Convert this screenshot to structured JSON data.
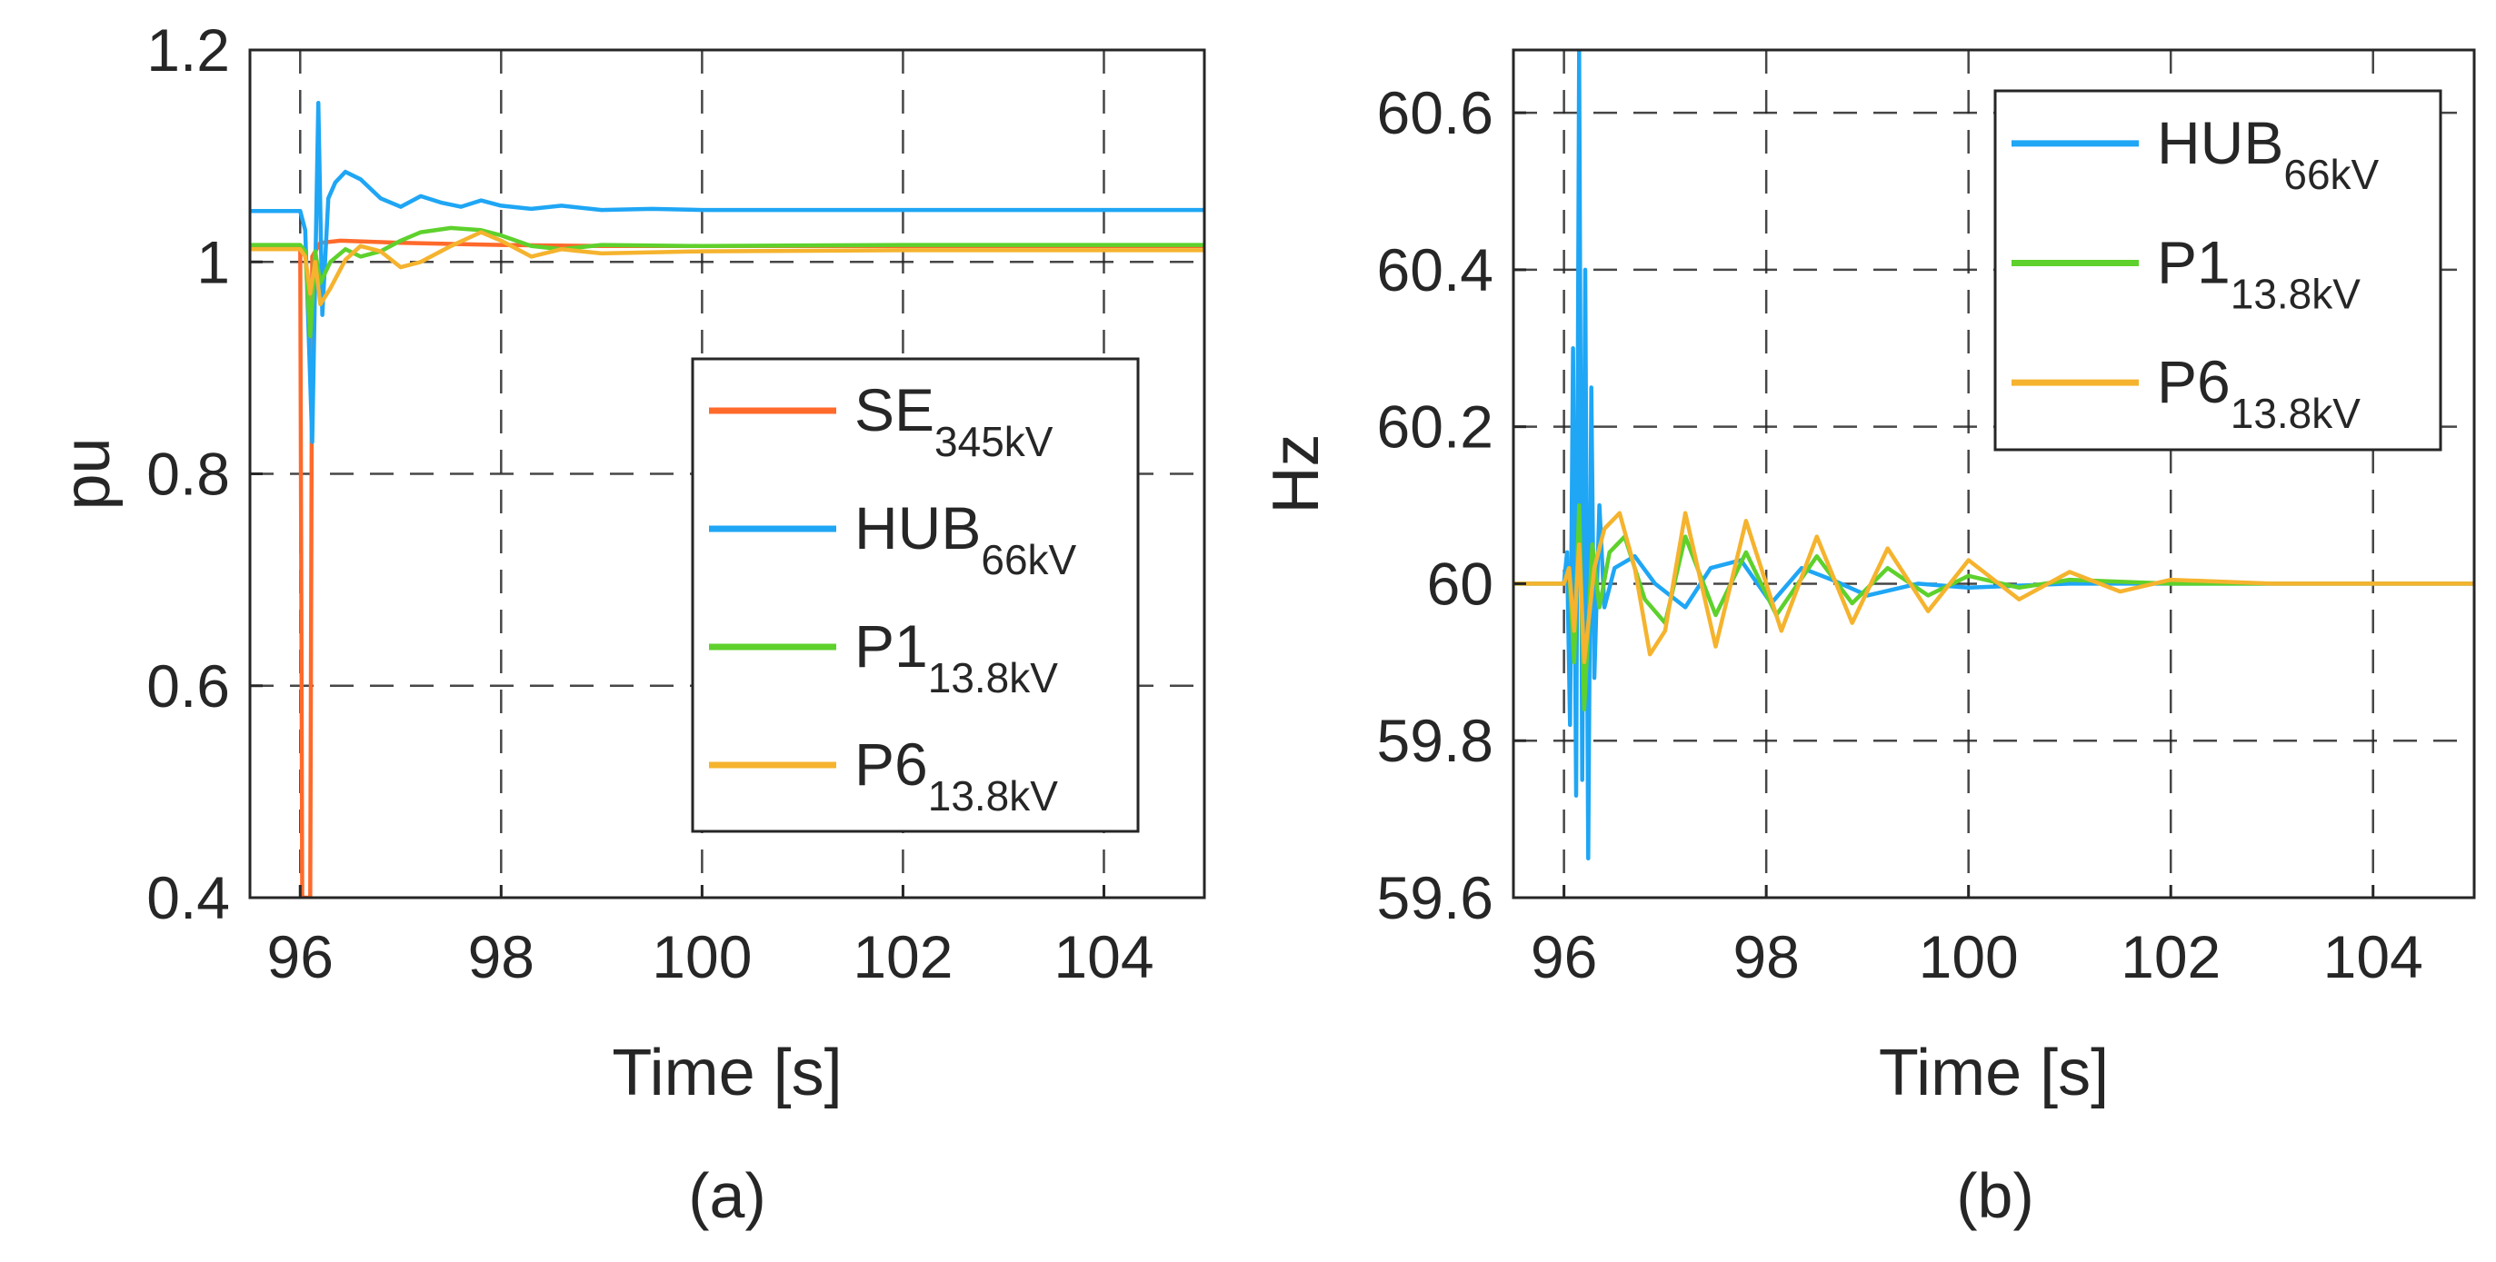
{
  "figure": {
    "panels": [
      "(a)",
      "(b)"
    ]
  },
  "chart_data": [
    {
      "type": "line",
      "caption": "(a)",
      "title": "",
      "xlabel": "Time [s]",
      "ylabel": "pu",
      "xlim": [
        95.5,
        105
      ],
      "ylim": [
        0.4,
        1.2
      ],
      "xticks": [
        96,
        98,
        100,
        102,
        104
      ],
      "yticks": [
        0.4,
        0.6,
        0.8,
        1,
        1.2
      ],
      "ytick_labels": [
        "0.4",
        "0.6",
        "0.8",
        "1",
        "1.2"
      ],
      "grid": true,
      "legend_position": "center-right",
      "series": [
        {
          "name": "SE",
          "subscript": "345kV",
          "color": "#ff6a2b",
          "points": [
            [
              95.5,
              1.015
            ],
            [
              96.0,
              1.015
            ],
            [
              96.02,
              0.4
            ],
            [
              96.1,
              0.4
            ],
            [
              96.12,
              1.005
            ],
            [
              96.2,
              1.018
            ],
            [
              96.4,
              1.02
            ],
            [
              97.0,
              1.018
            ],
            [
              98.0,
              1.016
            ],
            [
              99.0,
              1.015
            ],
            [
              105,
              1.015
            ]
          ]
        },
        {
          "name": "HUB",
          "subscript": "66kV",
          "color": "#1fa6f5",
          "points": [
            [
              95.5,
              1.048
            ],
            [
              96.0,
              1.048
            ],
            [
              96.05,
              1.03
            ],
            [
              96.12,
              0.83
            ],
            [
              96.18,
              1.15
            ],
            [
              96.22,
              0.95
            ],
            [
              96.28,
              1.06
            ],
            [
              96.35,
              1.075
            ],
            [
              96.45,
              1.085
            ],
            [
              96.6,
              1.078
            ],
            [
              96.8,
              1.06
            ],
            [
              97.0,
              1.052
            ],
            [
              97.2,
              1.062
            ],
            [
              97.4,
              1.056
            ],
            [
              97.6,
              1.052
            ],
            [
              97.8,
              1.058
            ],
            [
              98.0,
              1.053
            ],
            [
              98.3,
              1.05
            ],
            [
              98.6,
              1.053
            ],
            [
              99.0,
              1.049
            ],
            [
              99.5,
              1.05
            ],
            [
              100,
              1.049
            ],
            [
              102,
              1.049
            ],
            [
              105,
              1.049
            ]
          ]
        },
        {
          "name": "P1",
          "subscript": "13.8kV",
          "color": "#5ed12c",
          "points": [
            [
              95.5,
              1.016
            ],
            [
              96.0,
              1.016
            ],
            [
              96.05,
              1.01
            ],
            [
              96.1,
              0.93
            ],
            [
              96.15,
              1.01
            ],
            [
              96.2,
              0.98
            ],
            [
              96.3,
              1.0
            ],
            [
              96.45,
              1.012
            ],
            [
              96.6,
              1.005
            ],
            [
              96.8,
              1.01
            ],
            [
              97.0,
              1.02
            ],
            [
              97.2,
              1.028
            ],
            [
              97.5,
              1.032
            ],
            [
              97.8,
              1.03
            ],
            [
              98.0,
              1.025
            ],
            [
              98.3,
              1.015
            ],
            [
              98.6,
              1.012
            ],
            [
              99.0,
              1.016
            ],
            [
              100,
              1.015
            ],
            [
              102,
              1.016
            ],
            [
              105,
              1.016
            ]
          ]
        },
        {
          "name": "P6",
          "subscript": "13.8kV",
          "color": "#f5b32e",
          "points": [
            [
              95.5,
              1.012
            ],
            [
              96.0,
              1.012
            ],
            [
              96.05,
              1.005
            ],
            [
              96.1,
              0.97
            ],
            [
              96.15,
              1.0
            ],
            [
              96.2,
              0.96
            ],
            [
              96.3,
              0.975
            ],
            [
              96.45,
              1.002
            ],
            [
              96.6,
              1.015
            ],
            [
              96.8,
              1.01
            ],
            [
              97.0,
              0.995
            ],
            [
              97.2,
              1.0
            ],
            [
              97.5,
              1.015
            ],
            [
              97.8,
              1.028
            ],
            [
              98.0,
              1.02
            ],
            [
              98.3,
              1.005
            ],
            [
              98.6,
              1.012
            ],
            [
              99.0,
              1.008
            ],
            [
              100,
              1.01
            ],
            [
              102,
              1.011
            ],
            [
              105,
              1.011
            ]
          ]
        }
      ]
    },
    {
      "type": "line",
      "caption": "(b)",
      "title": "",
      "xlabel": "Time [s]",
      "ylabel": "Hz",
      "xlim": [
        95.5,
        105
      ],
      "ylim": [
        59.6,
        60.68
      ],
      "xticks": [
        96,
        98,
        100,
        102,
        104
      ],
      "yticks": [
        59.6,
        59.8,
        60,
        60.2,
        60.4,
        60.6
      ],
      "ytick_labels": [
        "59.6",
        "59.8",
        "60",
        "60.2",
        "60.4",
        "60.6"
      ],
      "grid": true,
      "legend_position": "top-right",
      "series": [
        {
          "name": "HUB",
          "subscript": "66kV",
          "color": "#1fa6f5",
          "points": [
            [
              95.5,
              60.0
            ],
            [
              96.0,
              60.0
            ],
            [
              96.03,
              60.04
            ],
            [
              96.06,
              59.82
            ],
            [
              96.09,
              60.3
            ],
            [
              96.12,
              59.73
            ],
            [
              96.15,
              60.68
            ],
            [
              96.18,
              59.75
            ],
            [
              96.21,
              60.4
            ],
            [
              96.24,
              59.65
            ],
            [
              96.27,
              60.25
            ],
            [
              96.3,
              59.88
            ],
            [
              96.35,
              60.1
            ],
            [
              96.4,
              59.97
            ],
            [
              96.5,
              60.02
            ],
            [
              96.7,
              60.035
            ],
            [
              96.9,
              60.0
            ],
            [
              97.2,
              59.97
            ],
            [
              97.45,
              60.02
            ],
            [
              97.75,
              60.03
            ],
            [
              98.05,
              59.975
            ],
            [
              98.35,
              60.02
            ],
            [
              98.65,
              60.005
            ],
            [
              99.0,
              59.985
            ],
            [
              99.5,
              60.0
            ],
            [
              100,
              59.995
            ],
            [
              101,
              60.0
            ],
            [
              105,
              60.0
            ]
          ]
        },
        {
          "name": "P1",
          "subscript": "13.8kV",
          "color": "#5ed12c",
          "points": [
            [
              95.5,
              60.0
            ],
            [
              96.0,
              60.0
            ],
            [
              96.05,
              60.02
            ],
            [
              96.1,
              59.9
            ],
            [
              96.15,
              60.1
            ],
            [
              96.2,
              59.84
            ],
            [
              96.28,
              60.05
            ],
            [
              96.35,
              59.97
            ],
            [
              96.45,
              60.04
            ],
            [
              96.6,
              60.06
            ],
            [
              96.8,
              59.98
            ],
            [
              97.0,
              59.95
            ],
            [
              97.2,
              60.06
            ],
            [
              97.5,
              59.96
            ],
            [
              97.8,
              60.04
            ],
            [
              98.1,
              59.96
            ],
            [
              98.5,
              60.035
            ],
            [
              98.85,
              59.975
            ],
            [
              99.2,
              60.02
            ],
            [
              99.6,
              59.985
            ],
            [
              100,
              60.01
            ],
            [
              100.5,
              59.995
            ],
            [
              101,
              60.005
            ],
            [
              102,
              60.0
            ],
            [
              105,
              60.0
            ]
          ]
        },
        {
          "name": "P6",
          "subscript": "13.8kV",
          "color": "#f5b32e",
          "points": [
            [
              95.5,
              60.0
            ],
            [
              96.0,
              60.0
            ],
            [
              96.05,
              60.02
            ],
            [
              96.1,
              59.94
            ],
            [
              96.15,
              60.05
            ],
            [
              96.2,
              59.9
            ],
            [
              96.3,
              60.02
            ],
            [
              96.4,
              60.07
            ],
            [
              96.55,
              60.09
            ],
            [
              96.7,
              60.02
            ],
            [
              96.85,
              59.91
            ],
            [
              97.0,
              59.94
            ],
            [
              97.2,
              60.09
            ],
            [
              97.5,
              59.92
            ],
            [
              97.8,
              60.08
            ],
            [
              98.15,
              59.94
            ],
            [
              98.5,
              60.06
            ],
            [
              98.85,
              59.95
            ],
            [
              99.2,
              60.045
            ],
            [
              99.6,
              59.965
            ],
            [
              100,
              60.03
            ],
            [
              100.5,
              59.98
            ],
            [
              101,
              60.015
            ],
            [
              101.5,
              59.99
            ],
            [
              102,
              60.005
            ],
            [
              103,
              60.0
            ],
            [
              105,
              60.0
            ]
          ]
        }
      ]
    }
  ]
}
